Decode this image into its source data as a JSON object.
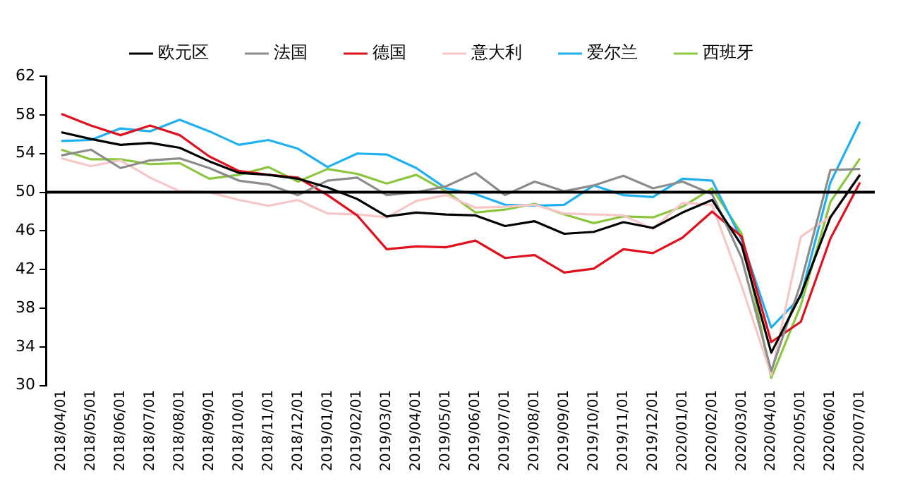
{
  "chart_data": {
    "type": "line",
    "categories": [
      "2018/04/01",
      "2018/05/01",
      "2018/06/01",
      "2018/07/01",
      "2018/08/01",
      "2018/09/01",
      "2018/10/01",
      "2018/11/01",
      "2018/12/01",
      "2019/01/01",
      "2019/02/01",
      "2019/03/01",
      "2019/04/01",
      "2019/05/01",
      "2019/06/01",
      "2019/07/01",
      "2019/08/01",
      "2019/09/01",
      "2019/10/01",
      "2019/11/01",
      "2019/12/01",
      "2020/01/01",
      "2020/02/01",
      "2020/03/01",
      "2020/04/01",
      "2020/05/01",
      "2020/06/01",
      "2020/07/01"
    ],
    "series": [
      {
        "name": "欧元区",
        "color": "#000000",
        "values": [
          56.2,
          55.5,
          54.9,
          55.1,
          54.6,
          53.2,
          52.0,
          51.8,
          51.4,
          50.5,
          49.3,
          47.5,
          47.9,
          47.7,
          47.6,
          46.5,
          47.0,
          45.7,
          45.9,
          46.9,
          46.3,
          47.9,
          49.2,
          44.5,
          33.4,
          39.4,
          47.4,
          51.8
        ]
      },
      {
        "name": "法国",
        "color": "#8c8c8c",
        "values": [
          53.8,
          54.4,
          52.5,
          53.3,
          53.5,
          52.5,
          51.2,
          50.8,
          49.7,
          51.2,
          51.5,
          49.7,
          50.0,
          50.6,
          52.0,
          49.7,
          51.1,
          50.1,
          50.7,
          51.7,
          50.4,
          51.1,
          49.8,
          43.2,
          31.5,
          40.6,
          52.3,
          52.4
        ]
      },
      {
        "name": "德国",
        "color": "#e0101e",
        "values": [
          58.1,
          56.9,
          55.9,
          56.9,
          55.9,
          53.7,
          52.2,
          51.8,
          51.5,
          49.7,
          47.6,
          44.1,
          44.4,
          44.3,
          45.0,
          43.2,
          43.5,
          41.7,
          42.1,
          44.1,
          43.7,
          45.3,
          48.0,
          45.4,
          34.5,
          36.6,
          45.2,
          51.0
        ]
      },
      {
        "name": "意大利",
        "color": "#f7c6c6",
        "values": [
          53.5,
          52.7,
          53.3,
          51.5,
          50.1,
          50.0,
          49.2,
          48.6,
          49.2,
          47.8,
          47.7,
          47.4,
          49.1,
          49.7,
          48.4,
          48.5,
          48.7,
          47.8,
          47.7,
          47.6,
          46.2,
          48.9,
          48.7,
          40.3,
          31.1,
          45.4,
          47.5,
          51.9
        ]
      },
      {
        "name": "爱尔兰",
        "color": "#1fb0f0",
        "values": [
          55.3,
          55.4,
          56.6,
          56.3,
          57.5,
          56.3,
          54.9,
          55.4,
          54.5,
          52.6,
          54.0,
          53.9,
          52.5,
          50.4,
          49.8,
          48.7,
          48.6,
          48.7,
          50.7,
          49.7,
          49.5,
          51.4,
          51.2,
          45.1,
          36.0,
          39.2,
          51.0,
          57.3
        ]
      },
      {
        "name": "西班牙",
        "color": "#8cc63f",
        "values": [
          54.4,
          53.4,
          53.4,
          52.9,
          53.0,
          51.4,
          51.8,
          52.6,
          51.1,
          52.4,
          51.9,
          50.9,
          51.8,
          50.1,
          47.9,
          48.2,
          48.8,
          47.7,
          46.8,
          47.5,
          47.4,
          48.5,
          50.4,
          45.7,
          30.8,
          38.3,
          49.0,
          53.5
        ]
      }
    ],
    "ylim": [
      30,
      62
    ],
    "yticks": [
      30,
      34,
      38,
      42,
      46,
      50,
      54,
      58,
      62
    ],
    "ref_lines": [
      {
        "axis": "y",
        "value": 50,
        "color": "#000000"
      }
    ],
    "grid": false,
    "legend": "top",
    "marker": "none",
    "line_style": "solid"
  }
}
